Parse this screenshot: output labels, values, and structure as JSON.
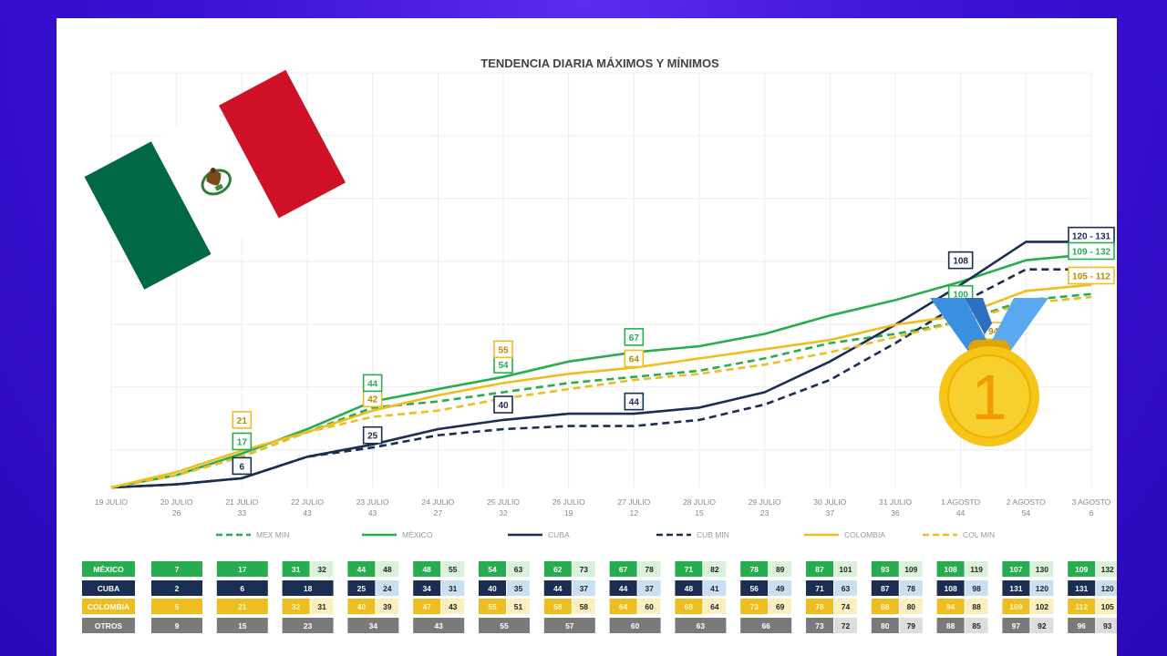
{
  "chart_data": {
    "type": "line",
    "title": "TENDENCIA DIARIA MÁXIMOS Y MÍNIMOS",
    "categories": [
      "19 JULIO",
      "20 JULIO",
      "21 JULIO",
      "22 JULIO",
      "23 JULIO",
      "24 JULIO",
      "25 JULIO",
      "26 JULIO",
      "27 JULIO",
      "28 JULIO",
      "29 JULIO",
      "30 JULIO",
      "31 JULIO",
      "1 AGOSTO",
      "2 AGOSTO",
      "3 AGOSTO"
    ],
    "category_numbers": [
      "",
      "26",
      "33",
      "43",
      "43",
      "27",
      "32",
      "19",
      "12",
      "15",
      "23",
      "37",
      "36",
      "44",
      "54",
      "6"
    ],
    "ylim": [
      0,
      135
    ],
    "grid": true,
    "legend_position": "bottom",
    "series": [
      {
        "name": "MEX MIN",
        "color": "#27ad50",
        "dash": true,
        "values": [
          0,
          4,
          10,
          18,
          26,
          28,
          31,
          34,
          36,
          38,
          42,
          47,
          50,
          54,
          61,
          63
        ]
      },
      {
        "name": "MÉXICO",
        "color": "#27ad50",
        "dash": false,
        "values": [
          0,
          4,
          11,
          19,
          28,
          32,
          36,
          41,
          44,
          46,
          50,
          56,
          61,
          67,
          74,
          76
        ]
      },
      {
        "name": "CUBA",
        "color": "#1a2d52",
        "dash": false,
        "values": [
          0,
          1,
          3,
          10,
          14,
          19,
          22,
          24,
          24,
          26,
          31,
          41,
          53,
          66,
          80,
          80
        ]
      },
      {
        "name": "CUB MIN",
        "color": "#1a2d52",
        "dash": true,
        "values": [
          0,
          1,
          3,
          10,
          13,
          17,
          19,
          20,
          20,
          22,
          27,
          35,
          47,
          60,
          71,
          71
        ]
      },
      {
        "name": "COLOMBIA",
        "color": "#eebd1f",
        "dash": false,
        "values": [
          0,
          5,
          12,
          18,
          25,
          30,
          34,
          37,
          39,
          42,
          45,
          48,
          53,
          56,
          64,
          66
        ]
      },
      {
        "name": "COL MIN",
        "color": "#eebd1f",
        "dash": true,
        "values": [
          0,
          4,
          10,
          18,
          23,
          25,
          29,
          32,
          35,
          37,
          40,
          44,
          49,
          54,
          60,
          62
        ]
      }
    ],
    "annotations": [
      {
        "text": "6",
        "series": "CUBA",
        "x": 2,
        "y": 7
      },
      {
        "text": "17",
        "series": "MÉXICO",
        "x": 2,
        "y": 15
      },
      {
        "text": "21",
        "series": "COLOMBIA",
        "x": 2,
        "y": 22
      },
      {
        "text": "25",
        "series": "CUBA",
        "x": 4,
        "y": 17
      },
      {
        "text": "42",
        "series": "COLOMBIA",
        "x": 4,
        "y": 29
      },
      {
        "text": "44",
        "series": "MÉXICO",
        "x": 4,
        "y": 34
      },
      {
        "text": "40",
        "series": "CUBA",
        "x": 6,
        "y": 27
      },
      {
        "text": "54",
        "series": "MÉXICO",
        "x": 6,
        "y": 40
      },
      {
        "text": "55",
        "series": "COLOMBIA",
        "x": 6,
        "y": 45
      },
      {
        "text": "44",
        "series": "CUBA",
        "x": 8,
        "y": 28
      },
      {
        "text": "64",
        "series": "COLOMBIA",
        "x": 8,
        "y": 42
      },
      {
        "text": "67",
        "series": "MÉXICO",
        "x": 8,
        "y": 49
      },
      {
        "text": "108",
        "series": "CUBA",
        "x": 13,
        "y": 74
      },
      {
        "text": "100",
        "series": "MÉXICO",
        "x": 13,
        "y": 63
      },
      {
        "text": "94",
        "series": "COLOMBIA",
        "x": 13.5,
        "y": 51
      },
      {
        "text": "120 - 131",
        "series": "CUBA",
        "x": 15,
        "y": 82
      },
      {
        "text": "109 - 132",
        "series": "MÉXICO",
        "x": 15,
        "y": 77
      },
      {
        "text": "105 - 112",
        "series": "COLOMBIA",
        "x": 15,
        "y": 69
      }
    ]
  },
  "table": {
    "row_labels": [
      "MÉXICO",
      "CUBA",
      "COLOMBIA",
      "OTROS"
    ],
    "row_colors": [
      "#27ad50",
      "#1a2d52",
      "#eebd1f",
      "#7a7a7a"
    ],
    "row_light_colors": [
      "#d9f2d9",
      "#c9dff2",
      "#fbefc0",
      "#dddddd"
    ],
    "columns": [
      {
        "max": [
          "7",
          "2",
          "5",
          "9"
        ],
        "min": [
          "",
          "",
          "",
          ""
        ]
      },
      {
        "max": [
          "17",
          "6",
          "21",
          "15"
        ],
        "min": [
          "",
          "",
          "",
          ""
        ]
      },
      {
        "max": [
          "31",
          "18",
          "32",
          "23"
        ],
        "min": [
          "32",
          "",
          "31",
          ""
        ]
      },
      {
        "max": [
          "44",
          "25",
          "40",
          "34"
        ],
        "min": [
          "48",
          "24",
          "39",
          ""
        ]
      },
      {
        "max": [
          "48",
          "34",
          "47",
          "43"
        ],
        "min": [
          "55",
          "31",
          "43",
          ""
        ]
      },
      {
        "max": [
          "54",
          "40",
          "55",
          "55"
        ],
        "min": [
          "63",
          "35",
          "51",
          ""
        ]
      },
      {
        "max": [
          "62",
          "44",
          "58",
          "57"
        ],
        "min": [
          "73",
          "37",
          "58",
          ""
        ]
      },
      {
        "max": [
          "67",
          "44",
          "64",
          "60"
        ],
        "min": [
          "78",
          "37",
          "60",
          ""
        ]
      },
      {
        "max": [
          "71",
          "48",
          "68",
          "63"
        ],
        "min": [
          "82",
          "41",
          "64",
          ""
        ]
      },
      {
        "max": [
          "78",
          "56",
          "73",
          "66"
        ],
        "min": [
          "89",
          "49",
          "69",
          ""
        ]
      },
      {
        "max": [
          "87",
          "71",
          "78",
          "73"
        ],
        "min": [
          "101",
          "63",
          "74",
          "72"
        ]
      },
      {
        "max": [
          "93",
          "87",
          "88",
          "80"
        ],
        "min": [
          "109",
          "78",
          "80",
          "79"
        ]
      },
      {
        "max": [
          "108",
          "108",
          "94",
          "88"
        ],
        "min": [
          "119",
          "98",
          "88",
          "85"
        ]
      },
      {
        "max": [
          "107",
          "131",
          "109",
          "97"
        ],
        "min": [
          "130",
          "120",
          "102",
          "92"
        ]
      },
      {
        "max": [
          "109",
          "131",
          "112",
          "96"
        ],
        "min": [
          "132",
          "120",
          "105",
          "93"
        ]
      }
    ]
  },
  "flag": {
    "colors": [
      "#006847",
      "#ffffff",
      "#ce1126"
    ]
  },
  "medal": {
    "label": "1",
    "ribbon_color": "#3b8fe0",
    "gold_color": "#f5c518"
  }
}
